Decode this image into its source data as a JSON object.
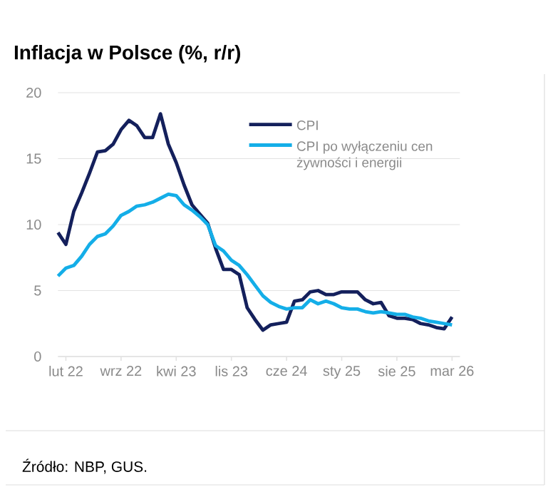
{
  "chart_data": {
    "type": "line",
    "title": "Inflacja w Polsce (%, r/r)",
    "annotations": [
      "Źródło: NBP, GUS."
    ],
    "x": [
      "2022-01",
      "2022-02",
      "2022-03",
      "2022-04",
      "2022-05",
      "2022-06",
      "2022-07",
      "2022-08",
      "2022-09",
      "2022-10",
      "2022-11",
      "2022-12",
      "2023-01",
      "2023-02",
      "2023-03",
      "2023-04",
      "2023-05",
      "2023-06",
      "2023-07",
      "2023-08",
      "2023-09",
      "2023-10",
      "2023-11",
      "2023-12",
      "2024-01",
      "2024-02",
      "2024-03",
      "2024-04",
      "2024-05",
      "2024-06",
      "2024-07",
      "2024-08",
      "2024-09",
      "2024-10",
      "2024-11",
      "2024-12",
      "2025-01",
      "2025-02",
      "2025-03",
      "2025-04",
      "2025-05",
      "2025-06",
      "2025-07",
      "2025-08",
      "2025-09",
      "2025-10",
      "2025-11",
      "2025-12",
      "2026-01",
      "2026-02",
      "2026-03"
    ],
    "series": [
      {
        "name": "CPI",
        "color": "#14205c",
        "values": [
          9.4,
          8.5,
          11.0,
          12.4,
          13.9,
          15.5,
          15.6,
          16.1,
          17.2,
          17.9,
          17.5,
          16.6,
          16.6,
          18.4,
          16.1,
          14.7,
          13.0,
          11.5,
          10.8,
          10.1,
          8.2,
          6.6,
          6.6,
          6.2,
          3.7,
          2.8,
          2.0,
          2.4,
          2.5,
          2.6,
          4.2,
          4.3,
          4.9,
          5.0,
          4.7,
          4.7,
          4.9,
          4.9,
          4.9,
          4.3,
          4.0,
          4.1,
          3.1,
          2.9,
          2.9,
          2.8,
          2.5,
          2.4,
          2.2,
          2.1,
          3.0
        ]
      },
      {
        "name": "CPI po wyłączeniu cen żywności i energii",
        "color": "#14aee8",
        "values": [
          6.1,
          6.7,
          6.9,
          7.6,
          8.5,
          9.1,
          9.3,
          9.9,
          10.7,
          11.0,
          11.4,
          11.5,
          11.7,
          12.0,
          12.3,
          12.2,
          11.5,
          11.1,
          10.6,
          10.0,
          8.4,
          8.0,
          7.3,
          6.9,
          6.2,
          5.4,
          4.6,
          4.1,
          3.8,
          3.6,
          3.7,
          3.7,
          4.3,
          4.0,
          4.2,
          4.0,
          3.7,
          3.6,
          3.6,
          3.4,
          3.3,
          3.4,
          3.3,
          3.2,
          3.2,
          3.0,
          2.9,
          2.7,
          2.6,
          2.5,
          2.4
        ]
      }
    ],
    "xlim": [
      "2022-01",
      "2026-04"
    ],
    "xticks": [
      {
        "value": "2022-02",
        "label": "lut 22"
      },
      {
        "value": "2022-09",
        "label": "wrz 22"
      },
      {
        "value": "2023-04",
        "label": "kwi 23"
      },
      {
        "value": "2023-11",
        "label": "lis 23"
      },
      {
        "value": "2024-06",
        "label": "cze 24"
      },
      {
        "value": "2025-01",
        "label": "sty 25"
      },
      {
        "value": "2025-08",
        "label": "sie 25"
      },
      {
        "value": "2026-03",
        "label": "mar 26"
      }
    ],
    "ylim": [
      0,
      20
    ],
    "yticks": [
      0,
      5,
      10,
      15,
      20
    ],
    "grid": "y",
    "legend": "top right",
    "marker": "none",
    "line_style": "solid"
  }
}
